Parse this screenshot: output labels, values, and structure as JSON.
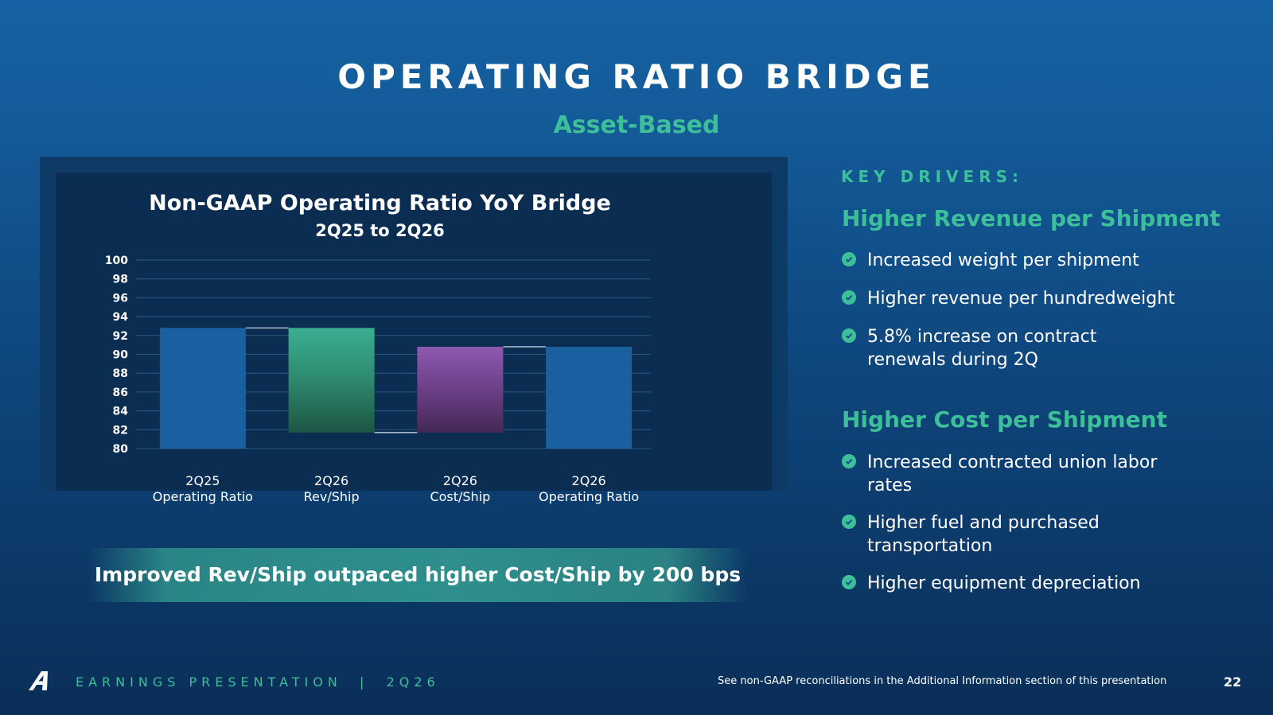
{
  "slide": {
    "title": "OPERATING RATIO BRIDGE",
    "subtitle": "Asset-Based"
  },
  "chart_data": {
    "type": "bar",
    "subtype": "waterfall",
    "title": "Non-GAAP Operating Ratio YoY Bridge",
    "subtitle": "2Q25 to 2Q26",
    "ylim": [
      80,
      100
    ],
    "yticks": [
      80,
      82,
      84,
      86,
      88,
      90,
      92,
      94,
      96,
      98,
      100
    ],
    "grid": true,
    "categories": [
      [
        "2Q25",
        "Operating Ratio"
      ],
      [
        "2Q26",
        "Rev/Ship"
      ],
      [
        "2Q26",
        "Cost/Ship"
      ],
      [
        "2Q26",
        "Operating Ratio"
      ]
    ],
    "bars": [
      {
        "kind": "total",
        "start": 80,
        "end": 92.8,
        "color": "#1a5fa0"
      },
      {
        "kind": "decrease",
        "start": 92.8,
        "end": 81.7,
        "color_top": "#3aae93",
        "color_bottom": "#1d5a45"
      },
      {
        "kind": "increase",
        "start": 81.7,
        "end": 90.8,
        "color_top": "#8a58ad",
        "color_bottom": "#4a2a5a"
      },
      {
        "kind": "total",
        "start": 80,
        "end": 90.8,
        "color": "#1a5fa0"
      }
    ]
  },
  "banner": {
    "text": "Improved Rev/Ship outpaced higher Cost/Ship by 200 bps"
  },
  "drivers": {
    "label": "KEY DRIVERS:",
    "revenue_head": "Higher Revenue per Shipment",
    "revenue_items": [
      "Increased weight per shipment",
      "Higher revenue per hundredweight",
      "5.8% increase on contract renewals during 2Q"
    ],
    "cost_head": "Higher Cost per Shipment",
    "cost_items": [
      "Increased contracted union labor rates",
      "Higher fuel and purchased transportation",
      "Higher equipment depreciation"
    ]
  },
  "footer": {
    "left": "EARNINGS PRESENTATION  |  2Q26",
    "note": "See non-GAAP reconciliations in the Additional Information section of this presentation",
    "page": "22"
  },
  "colors": {
    "accent": "#3dbf9a",
    "background": "#135a98"
  },
  "icons": {
    "logo": "company-logo",
    "bullet": "check-circle-icon"
  }
}
